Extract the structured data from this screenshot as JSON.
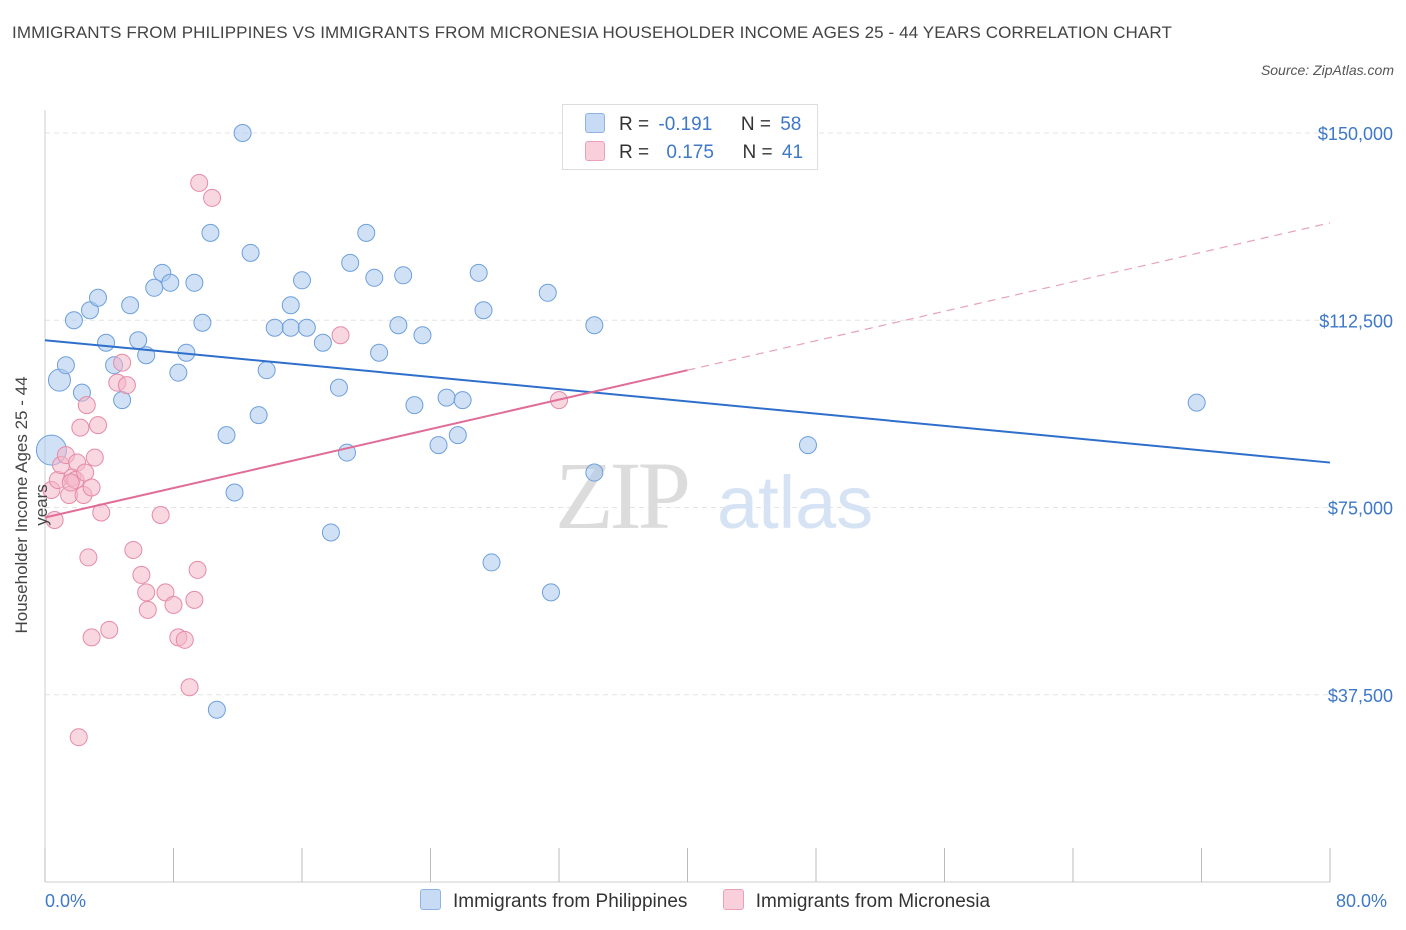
{
  "title": "IMMIGRANTS FROM PHILIPPINES VS IMMIGRANTS FROM MICRONESIA HOUSEHOLDER INCOME AGES 25 - 44 YEARS CORRELATION CHART",
  "source": "Source: ZipAtlas.com",
  "watermark": {
    "zip": "ZIP",
    "atlas": "atlas"
  },
  "legend_top": {
    "rows": [
      {
        "r_label": "R =",
        "r_value": "-0.191",
        "n_label": "N =",
        "n_value": "58",
        "color": "#aac8ef"
      },
      {
        "r_label": "R =",
        "r_value": "0.175",
        "n_label": "N =",
        "n_value": "41",
        "color": "#f4b6c9"
      }
    ]
  },
  "chart_data": {
    "type": "scatter",
    "title": "IMMIGRANTS FROM PHILIPPINES VS IMMIGRANTS FROM MICRONESIA HOUSEHOLDER INCOME AGES 25 - 44 YEARS CORRELATION CHART",
    "xlabel": "",
    "ylabel": "Householder Income Ages 25 - 44 years",
    "xlim": [
      0,
      80
    ],
    "ylim": [
      0,
      150000
    ],
    "x_tick_labels": [
      "0.0%",
      "80.0%"
    ],
    "y_ticks": [
      37500,
      75000,
      112500,
      150000
    ],
    "y_tick_labels": [
      "$37,500",
      "$75,000",
      "$112,500",
      "$150,000"
    ],
    "grid": true,
    "legend_position": "bottom",
    "series": [
      {
        "name": "Immigrants from Philippines",
        "color": "#aac8ef",
        "edge": "#6e9fdc",
        "trend": {
          "x": [
            0,
            80
          ],
          "y": [
            108500,
            84000
          ]
        },
        "points": [
          [
            0.4,
            86500
          ],
          [
            0.9,
            100500
          ],
          [
            1.3,
            103500
          ],
          [
            1.8,
            112500
          ],
          [
            2.3,
            98000
          ],
          [
            2.8,
            114500
          ],
          [
            3.3,
            117000
          ],
          [
            3.8,
            108000
          ],
          [
            4.3,
            103500
          ],
          [
            4.8,
            96500
          ],
          [
            5.3,
            115500
          ],
          [
            5.8,
            108500
          ],
          [
            6.3,
            105500
          ],
          [
            6.8,
            119000
          ],
          [
            7.3,
            122000
          ],
          [
            7.8,
            120000
          ],
          [
            8.3,
            102000
          ],
          [
            8.8,
            106000
          ],
          [
            9.3,
            120000
          ],
          [
            9.8,
            112000
          ],
          [
            10.3,
            130000
          ],
          [
            11.3,
            89500
          ],
          [
            11.8,
            78000
          ],
          [
            12.3,
            150000
          ],
          [
            12.8,
            126000
          ],
          [
            13.3,
            93500
          ],
          [
            13.8,
            102500
          ],
          [
            14.3,
            111000
          ],
          [
            15.3,
            111000
          ],
          [
            15.3,
            115500
          ],
          [
            16.0,
            120500
          ],
          [
            16.3,
            111000
          ],
          [
            17.3,
            108000
          ],
          [
            17.8,
            70000
          ],
          [
            18.3,
            99000
          ],
          [
            18.8,
            86000
          ],
          [
            19.0,
            124000
          ],
          [
            20.0,
            130000
          ],
          [
            20.5,
            121000
          ],
          [
            20.8,
            106000
          ],
          [
            22.0,
            111500
          ],
          [
            22.3,
            121500
          ],
          [
            23.0,
            95500
          ],
          [
            23.5,
            109500
          ],
          [
            24.5,
            87500
          ],
          [
            25.0,
            97000
          ],
          [
            25.7,
            89500
          ],
          [
            26.0,
            96500
          ],
          [
            27.0,
            122000
          ],
          [
            27.3,
            114500
          ],
          [
            27.8,
            64000
          ],
          [
            31.3,
            118000
          ],
          [
            31.5,
            58000
          ],
          [
            34.2,
            82000
          ],
          [
            34.2,
            111500
          ],
          [
            47.5,
            87500
          ],
          [
            71.7,
            96000
          ],
          [
            10.7,
            34500
          ]
        ]
      },
      {
        "name": "Immigrants from Micronesia",
        "color": "#f4b6c9",
        "edge": "#e68aa8",
        "trend": {
          "x": [
            0,
            40
          ],
          "y": [
            73000,
            102500
          ]
        },
        "trend_dashed": {
          "x": [
            40,
            80
          ],
          "y": [
            102500,
            132000
          ]
        },
        "points": [
          [
            0.4,
            78500
          ],
          [
            0.6,
            72500
          ],
          [
            0.8,
            80500
          ],
          [
            1.0,
            83500
          ],
          [
            1.3,
            85500
          ],
          [
            1.5,
            77500
          ],
          [
            1.7,
            81000
          ],
          [
            1.9,
            80500
          ],
          [
            2.0,
            84000
          ],
          [
            2.1,
            29000
          ],
          [
            2.2,
            91000
          ],
          [
            2.4,
            77500
          ],
          [
            2.5,
            82000
          ],
          [
            2.6,
            95500
          ],
          [
            2.7,
            65000
          ],
          [
            2.9,
            49000
          ],
          [
            3.1,
            85000
          ],
          [
            3.3,
            91500
          ],
          [
            3.5,
            74000
          ],
          [
            4.0,
            50500
          ],
          [
            4.5,
            100000
          ],
          [
            4.8,
            104000
          ],
          [
            5.1,
            99500
          ],
          [
            5.5,
            66500
          ],
          [
            6.0,
            61500
          ],
          [
            6.3,
            58000
          ],
          [
            6.4,
            54500
          ],
          [
            7.2,
            73500
          ],
          [
            7.5,
            58000
          ],
          [
            8.0,
            55500
          ],
          [
            8.3,
            49000
          ],
          [
            8.7,
            48500
          ],
          [
            9.0,
            39000
          ],
          [
            9.3,
            56500
          ],
          [
            9.5,
            62500
          ],
          [
            9.6,
            140000
          ],
          [
            10.4,
            137000
          ],
          [
            18.4,
            109500
          ],
          [
            32.0,
            96500
          ],
          [
            1.6,
            80000
          ],
          [
            2.9,
            79000
          ]
        ]
      }
    ]
  }
}
